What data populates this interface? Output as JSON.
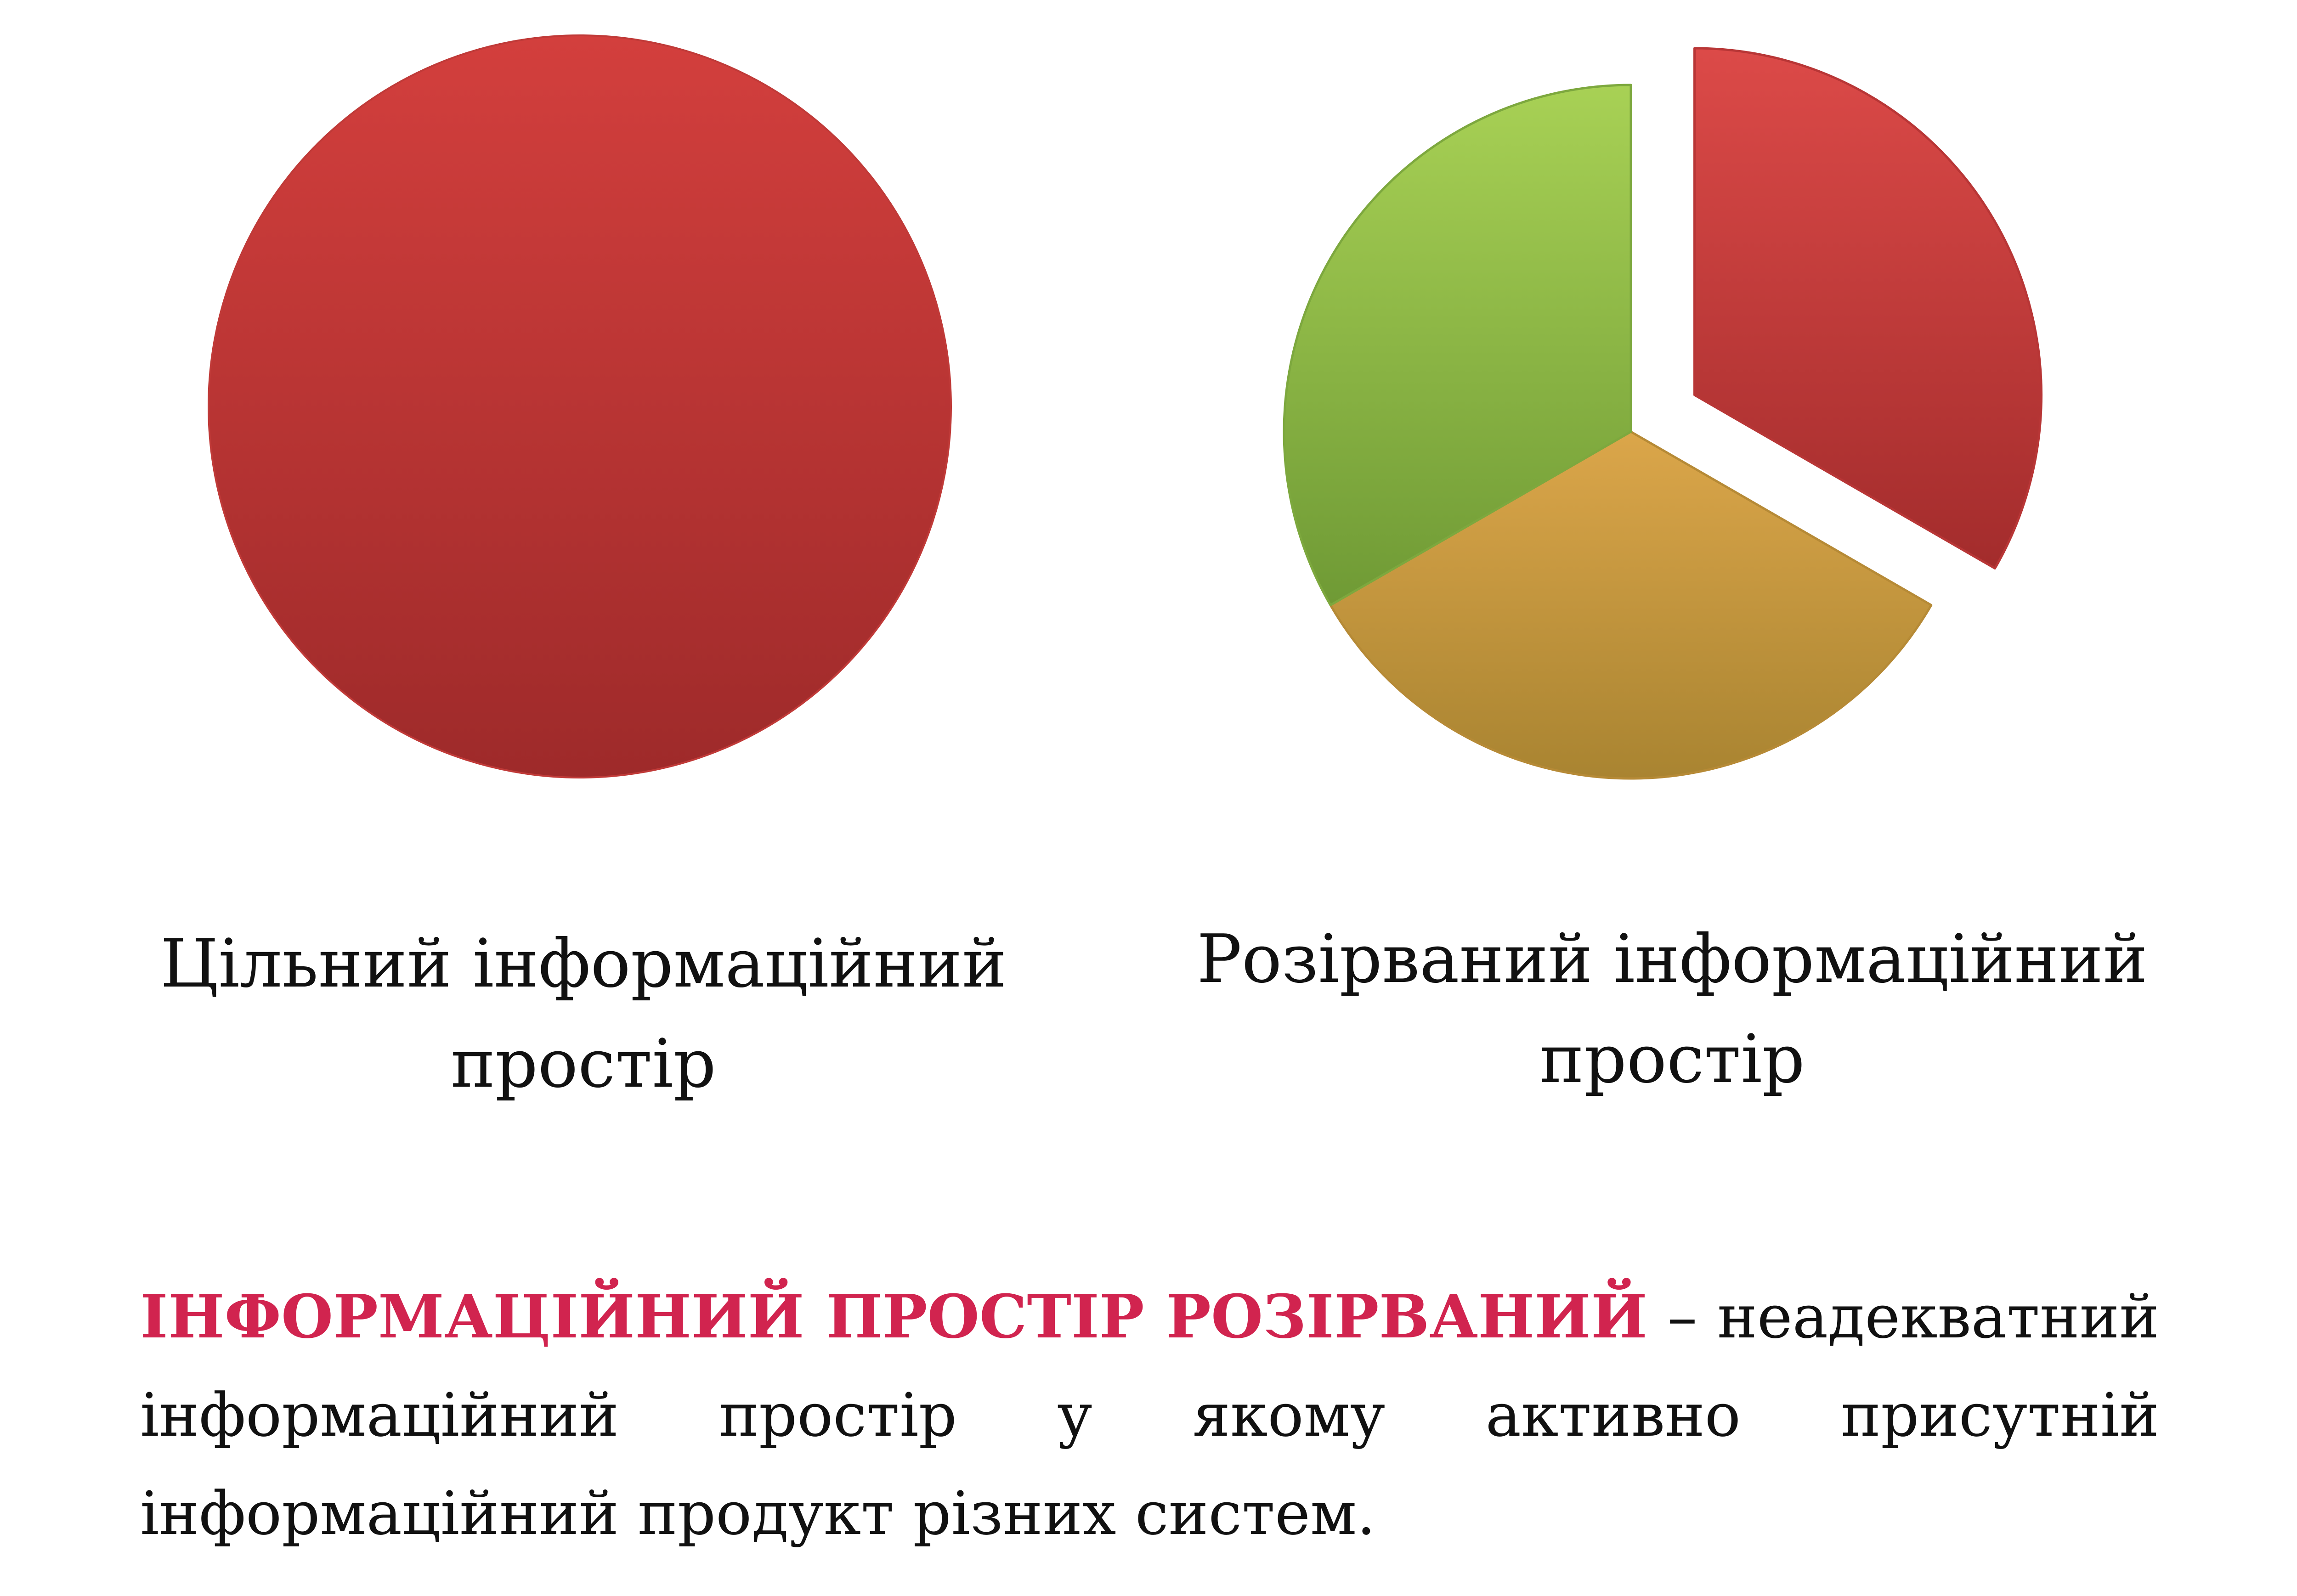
{
  "colors": {
    "red": "#cc3a3a",
    "gold": "#c99a3e",
    "green": "#8ab545",
    "term": "#d1244f",
    "text": "#111111"
  },
  "chart_data": [
    {
      "type": "pie",
      "title": "Цільний інформаційний простір",
      "slices": [
        {
          "value": 1,
          "color": "#cc3a3a"
        }
      ]
    },
    {
      "type": "pie",
      "title": "Розірваний інформаційний простір",
      "exploded": [
        true,
        false,
        false
      ],
      "slices": [
        {
          "value": 1,
          "color": "#cc3a3a"
        },
        {
          "value": 1,
          "color": "#c99a3e"
        },
        {
          "value": 1,
          "color": "#8ab545"
        }
      ]
    }
  ],
  "captions": {
    "left_line1": "Цільний інформаційний",
    "left_line2": "простір",
    "right_line1": "Розірваний інформаційний",
    "right_line2": "простір"
  },
  "definition": {
    "term": "ІНФОРМАЦІЙНИЙ ПРОСТІР РОЗІРВАНИЙ",
    "dash": " – ",
    "text": "неадекватний інформаційний простір у якому активно присутній інформаційний продукт різних систем."
  }
}
